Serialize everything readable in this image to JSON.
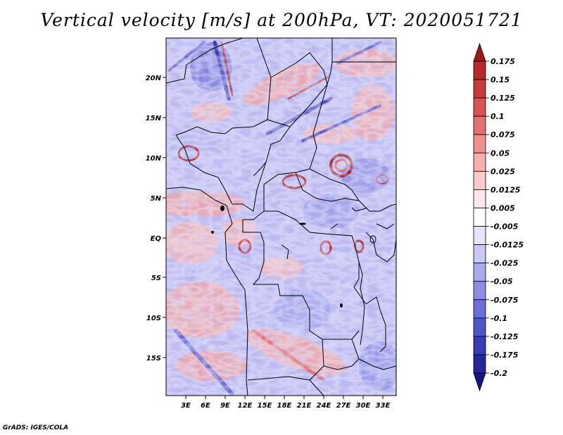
{
  "title": "Vertical velocity [m/s] at 200hPa, VT: 2020051721",
  "footer": "GrADS: IGES/COLA",
  "lat_labels": [
    "20N",
    "15N",
    "10N",
    "5N",
    "EQ",
    "5S",
    "10S",
    "15S"
  ],
  "lon_labels": [
    "3E",
    "6E",
    "9E",
    "12E",
    "15E",
    "18E",
    "21E",
    "24E",
    "27E",
    "30E",
    "33E"
  ],
  "colorbar": {
    "labels": [
      "0.175",
      "0.15",
      "0.125",
      "0.1",
      "0.075",
      "0.05",
      "0.025",
      "0.0125",
      "0.005",
      "-0.005",
      "-0.0125",
      "-0.025",
      "-0.05",
      "-0.075",
      "-0.1",
      "-0.125",
      "-0.175",
      "-0.2"
    ],
    "colors": [
      "#a01818",
      "#b82828",
      "#c83a3a",
      "#d85454",
      "#e47070",
      "#ee9090",
      "#f4aeae",
      "#f8caca",
      "#fce6e6",
      "#ffffff",
      "#e4e4fa",
      "#c8c8f4",
      "#aaaaee",
      "#8c8ce4",
      "#6e6ed8",
      "#5252c8",
      "#3a3ab4",
      "#24249c",
      "#141488"
    ]
  }
}
